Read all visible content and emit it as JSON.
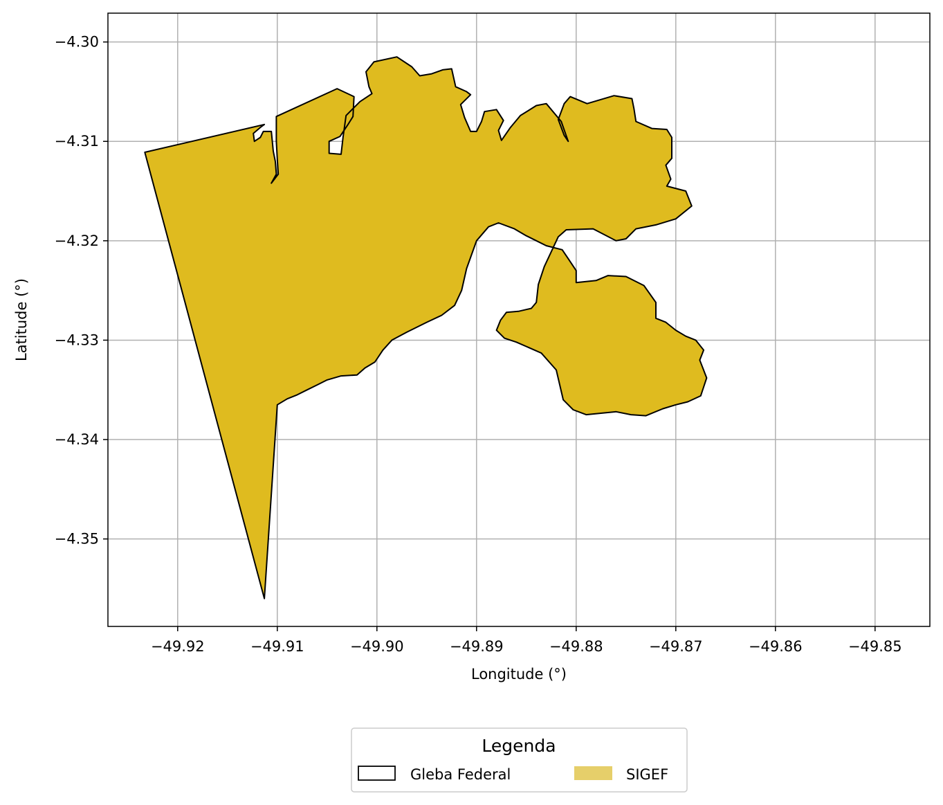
{
  "chart_data": {
    "type": "map",
    "xlabel": "Longitude (°)",
    "ylabel": "Latitude (°)",
    "xlim": [
      -49.927,
      -49.8445
    ],
    "ylim": [
      -4.3588,
      -4.2971
    ],
    "x_ticks": [
      -49.92,
      -49.91,
      -49.9,
      -49.89,
      -49.88,
      -49.87,
      -49.86,
      -49.85
    ],
    "x_tick_labels": [
      "−49.92",
      "−49.91",
      "−49.90",
      "−49.89",
      "−49.88",
      "−49.87",
      "−49.86",
      "−49.85"
    ],
    "y_ticks": [
      -4.3,
      -4.31,
      -4.32,
      -4.33,
      -4.34,
      -4.35
    ],
    "y_tick_labels": [
      "−4.30",
      "−4.31",
      "−4.32",
      "−4.33",
      "−4.34",
      "−4.35"
    ],
    "grid": true,
    "legend": {
      "title": "Legenda",
      "placement": "bottom-center (below plot)",
      "entries": [
        {
          "label": "Gleba Federal",
          "style": "outline",
          "color": "#000000"
        },
        {
          "label": "SIGEF",
          "style": "fill",
          "color": "#e6cf6a"
        }
      ]
    },
    "layers": [
      {
        "name": "SIGEF",
        "fill": "#dfbb1f"
      },
      {
        "name": "Gleba Federal",
        "stroke": "#000000"
      }
    ],
    "polygon": [
      [
        -49.9233,
        -4.3111
      ],
      [
        -49.9113,
        -4.3083
      ],
      [
        -49.9117,
        -4.3086
      ],
      [
        -49.9124,
        -4.3092
      ],
      [
        -49.9123,
        -4.31
      ],
      [
        -49.9117,
        -4.3096
      ],
      [
        -49.9114,
        -4.309
      ],
      [
        -49.9106,
        -4.309
      ],
      [
        -49.9104,
        -4.311
      ],
      [
        -49.9102,
        -4.312
      ],
      [
        -49.9101,
        -4.3133
      ],
      [
        -49.9106,
        -4.3142
      ],
      [
        -49.9099,
        -4.3133
      ],
      [
        -49.91,
        -4.3118
      ],
      [
        -49.9101,
        -4.31
      ],
      [
        -49.9101,
        -4.3075
      ],
      [
        -49.904,
        -4.3047
      ],
      [
        -49.9023,
        -4.3055
      ],
      [
        -49.9024,
        -4.3075
      ],
      [
        -49.9029,
        -4.3083
      ],
      [
        -49.9037,
        -4.3095
      ],
      [
        -49.9048,
        -4.31
      ],
      [
        -49.9048,
        -4.3112
      ],
      [
        -49.9036,
        -4.3113
      ],
      [
        -49.9034,
        -4.3096
      ],
      [
        -49.9031,
        -4.3074
      ],
      [
        -49.9017,
        -4.306
      ],
      [
        -49.9005,
        -4.3052
      ],
      [
        -49.9008,
        -4.3045
      ],
      [
        -49.9011,
        -4.303
      ],
      [
        -49.9003,
        -4.302
      ],
      [
        -49.898,
        -4.3015
      ],
      [
        -49.8965,
        -4.3025
      ],
      [
        -49.8957,
        -4.3034
      ],
      [
        -49.8945,
        -4.3032
      ],
      [
        -49.8934,
        -4.3028
      ],
      [
        -49.8925,
        -4.3027
      ],
      [
        -49.8921,
        -4.3045
      ],
      [
        -49.891,
        -4.305
      ],
      [
        -49.8906,
        -4.3053
      ],
      [
        -49.8916,
        -4.3063
      ],
      [
        -49.8912,
        -4.3076
      ],
      [
        -49.8906,
        -4.309
      ],
      [
        -49.89,
        -4.309
      ],
      [
        -49.8895,
        -4.308
      ],
      [
        -49.8892,
        -4.307
      ],
      [
        -49.888,
        -4.3068
      ],
      [
        -49.8873,
        -4.3079
      ],
      [
        -49.8878,
        -4.3089
      ],
      [
        -49.8875,
        -4.3099
      ],
      [
        -49.8866,
        -4.3086
      ],
      [
        -49.8856,
        -4.3074
      ],
      [
        -49.884,
        -4.3064
      ],
      [
        -49.883,
        -4.3062
      ],
      [
        -49.8815,
        -4.308
      ],
      [
        -49.8808,
        -4.31
      ],
      [
        -49.8812,
        -4.3094
      ],
      [
        -49.8818,
        -4.3078
      ],
      [
        -49.8812,
        -4.3062
      ],
      [
        -49.8806,
        -4.3055
      ],
      [
        -49.8789,
        -4.3062
      ],
      [
        -49.8762,
        -4.3054
      ],
      [
        -49.8744,
        -4.3057
      ],
      [
        -49.8742,
        -4.3067
      ],
      [
        -49.874,
        -4.308
      ],
      [
        -49.8724,
        -4.3087
      ],
      [
        -49.8709,
        -4.3088
      ],
      [
        -49.8704,
        -4.3096
      ],
      [
        -49.8704,
        -4.3117
      ],
      [
        -49.871,
        -4.3124
      ],
      [
        -49.8705,
        -4.3138
      ],
      [
        -49.8709,
        -4.3145
      ],
      [
        -49.869,
        -4.315
      ],
      [
        -49.8684,
        -4.3165
      ],
      [
        -49.87,
        -4.3178
      ],
      [
        -49.872,
        -4.3184
      ],
      [
        -49.874,
        -4.3188
      ],
      [
        -49.875,
        -4.3198
      ],
      [
        -49.876,
        -4.32
      ],
      [
        -49.8783,
        -4.3188
      ],
      [
        -49.881,
        -4.3189
      ],
      [
        -49.8818,
        -4.3196
      ],
      [
        -49.8832,
        -4.3226
      ],
      [
        -49.8838,
        -4.3244
      ],
      [
        -49.884,
        -4.3262
      ],
      [
        -49.8845,
        -4.3268
      ],
      [
        -49.8858,
        -4.3271
      ],
      [
        -49.887,
        -4.3272
      ],
      [
        -49.8876,
        -4.328
      ],
      [
        -49.888,
        -4.329
      ],
      [
        -49.8872,
        -4.3298
      ],
      [
        -49.886,
        -4.3302
      ],
      [
        -49.8835,
        -4.3313
      ],
      [
        -49.882,
        -4.333
      ],
      [
        -49.8813,
        -4.336
      ],
      [
        -49.8803,
        -4.337
      ],
      [
        -49.879,
        -4.3375
      ],
      [
        -49.876,
        -4.3372
      ],
      [
        -49.8745,
        -4.3375
      ],
      [
        -49.873,
        -4.3376
      ],
      [
        -49.8713,
        -4.3369
      ],
      [
        -49.87,
        -4.3365
      ],
      [
        -49.8688,
        -4.3362
      ],
      [
        -49.8675,
        -4.3356
      ],
      [
        -49.8669,
        -4.3338
      ],
      [
        -49.8676,
        -4.332
      ],
      [
        -49.8672,
        -4.331
      ],
      [
        -49.868,
        -4.33
      ],
      [
        -49.869,
        -4.3296
      ],
      [
        -49.87,
        -4.329
      ],
      [
        -49.871,
        -4.3282
      ],
      [
        -49.872,
        -4.3278
      ],
      [
        -49.872,
        -4.3262
      ],
      [
        -49.8732,
        -4.3245
      ],
      [
        -49.875,
        -4.3236
      ],
      [
        -49.8768,
        -4.3235
      ],
      [
        -49.878,
        -4.324
      ],
      [
        -49.88,
        -4.3242
      ],
      [
        -49.88,
        -4.323
      ],
      [
        -49.8808,
        -4.3218
      ],
      [
        -49.8814,
        -4.3209
      ],
      [
        -49.883,
        -4.3205
      ],
      [
        -49.884,
        -4.32
      ],
      [
        -49.885,
        -4.3195
      ],
      [
        -49.8862,
        -4.3188
      ],
      [
        -49.8878,
        -4.3182
      ],
      [
        -49.8888,
        -4.3186
      ],
      [
        -49.89,
        -4.32
      ],
      [
        -49.891,
        -4.3228
      ],
      [
        -49.8915,
        -4.325
      ],
      [
        -49.8922,
        -4.3265
      ],
      [
        -49.8935,
        -4.3275
      ],
      [
        -49.895,
        -4.3282
      ],
      [
        -49.897,
        -4.3292
      ],
      [
        -49.8985,
        -4.33
      ],
      [
        -49.8994,
        -4.331
      ],
      [
        -49.9002,
        -4.3322
      ],
      [
        -49.9012,
        -4.3328
      ],
      [
        -49.902,
        -4.3335
      ],
      [
        -49.9036,
        -4.3336
      ],
      [
        -49.905,
        -4.334
      ],
      [
        -49.906,
        -4.3345
      ],
      [
        -49.907,
        -4.335
      ],
      [
        -49.908,
        -4.3355
      ],
      [
        -49.909,
        -4.3359
      ],
      [
        -49.91,
        -4.3365
      ],
      [
        -49.9113,
        -4.356
      ],
      [
        -49.9233,
        -4.3111
      ]
    ]
  }
}
